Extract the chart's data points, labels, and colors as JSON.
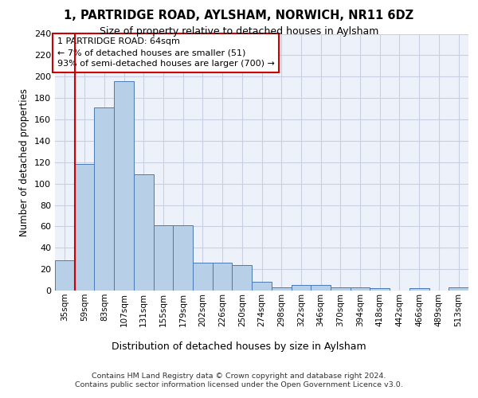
{
  "title1": "1, PARTRIDGE ROAD, AYLSHAM, NORWICH, NR11 6DZ",
  "title2": "Size of property relative to detached houses in Aylsham",
  "xlabel": "Distribution of detached houses by size in Aylsham",
  "ylabel": "Number of detached properties",
  "annotation_line1": "1 PARTRIDGE ROAD: 64sqm",
  "annotation_line2": "← 7% of detached houses are smaller (51)",
  "annotation_line3": "93% of semi-detached houses are larger (700) →",
  "bar_values": [
    28,
    118,
    171,
    196,
    109,
    61,
    61,
    26,
    26,
    24,
    8,
    3,
    5,
    5,
    3,
    3,
    2,
    0,
    2,
    0,
    3
  ],
  "bin_labels": [
    "35sqm",
    "59sqm",
    "83sqm",
    "107sqm",
    "131sqm",
    "155sqm",
    "179sqm",
    "202sqm",
    "226sqm",
    "250sqm",
    "274sqm",
    "298sqm",
    "322sqm",
    "346sqm",
    "370sqm",
    "394sqm",
    "418sqm",
    "442sqm",
    "466sqm",
    "489sqm",
    "513sqm"
  ],
  "bar_color": "#b8cfe8",
  "bar_edge_color": "#4a7ab5",
  "red_line_x": 1,
  "red_color": "#cc0000",
  "bg_color": "#edf1fa",
  "grid_color": "#c8cfe0",
  "ylim": [
    0,
    240
  ],
  "yticks": [
    0,
    20,
    40,
    60,
    80,
    100,
    120,
    140,
    160,
    180,
    200,
    220,
    240
  ],
  "footer_line1": "Contains HM Land Registry data © Crown copyright and database right 2024.",
  "footer_line2": "Contains public sector information licensed under the Open Government Licence v3.0."
}
